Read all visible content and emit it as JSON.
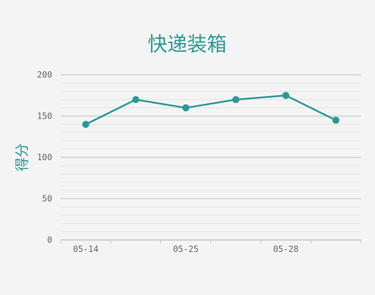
{
  "chart_data": {
    "type": "line",
    "title": "快递装箱",
    "ylabel": "得分",
    "xlabel": "",
    "categories": [
      "05-14",
      "",
      "05-25",
      "",
      "05-28",
      ""
    ],
    "series": [
      {
        "values": [
          140,
          170,
          160,
          170,
          175,
          145
        ]
      }
    ],
    "ylim": [
      0,
      200
    ],
    "yticks": [
      0,
      50,
      100,
      150,
      200
    ],
    "grid": true,
    "line_color": "#2a9a96",
    "grid_color": "#d4d4d4"
  }
}
